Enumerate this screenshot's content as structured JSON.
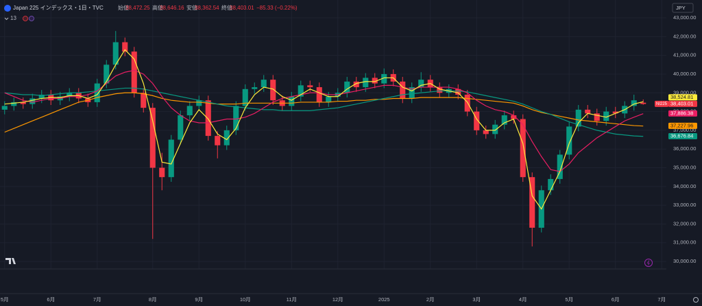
{
  "chart_data": {
    "type": "candlestick",
    "title": "Japan 225 インデックス・1日・TVC",
    "header": {
      "open_label": "始値",
      "open": "38,472.25",
      "high_label": "高値",
      "high": "38,646.16",
      "low_label": "安値",
      "low": "38,362.54",
      "close_label": "終値",
      "close": "38,403.01",
      "change": "−85.33 (−0.22%)",
      "indicators": 13
    },
    "currency": "JPY",
    "symbol": "NI225",
    "categories": [
      "5月",
      null,
      null,
      null,
      null,
      "6月",
      null,
      null,
      null,
      null,
      "7月",
      null,
      null,
      null,
      null,
      null,
      "8月",
      null,
      null,
      null,
      null,
      "9月",
      null,
      null,
      null,
      null,
      "10月",
      null,
      null,
      null,
      null,
      "11月",
      null,
      null,
      null,
      null,
      "12月",
      null,
      null,
      null,
      null,
      "2025",
      null,
      null,
      null,
      null,
      "2月",
      null,
      null,
      null,
      null,
      "3月",
      null,
      null,
      null,
      null,
      "4月",
      null,
      null,
      null,
      null,
      "5月",
      null,
      null,
      null,
      null,
      "6月",
      null,
      null,
      null,
      null,
      "7月"
    ],
    "open": [
      38100,
      38300,
      38500,
      38400,
      38700,
      38900,
      38600,
      38800,
      39000,
      38700,
      38500,
      39500,
      40500,
      41700,
      41200,
      39000,
      38200,
      35000,
      34500,
      36500,
      37800,
      38300,
      38600,
      36700,
      36200,
      37000,
      38300,
      39200,
      39300,
      39700,
      38600,
      38300,
      38800,
      39400,
      39300,
      38500,
      38800,
      39000,
      39600,
      39300,
      39800,
      39500,
      40000,
      39600,
      38700,
      39300,
      39700,
      39300,
      39000,
      39200,
      38900,
      38000,
      37000,
      36800,
      37300,
      37800,
      37600,
      34500,
      31800,
      33800,
      34400,
      35700,
      37200,
      38100,
      37900,
      37500,
      38000,
      37900,
      38300,
      38472.25,
      null,
      null
    ],
    "high": [
      38550,
      38750,
      38750,
      38950,
      39150,
      39150,
      39050,
      39250,
      39250,
      38950,
      39750,
      40750,
      42300,
      41950,
      41450,
      39250,
      38450,
      35800,
      36750,
      38050,
      38550,
      38850,
      38850,
      36950,
      37250,
      38550,
      39450,
      39550,
      39950,
      39950,
      38850,
      39050,
      39650,
      39650,
      39550,
      39050,
      39250,
      39850,
      39850,
      40050,
      40050,
      40300,
      40250,
      39850,
      39550,
      40100,
      39950,
      39550,
      39450,
      39450,
      39150,
      38250,
      37250,
      37550,
      38050,
      38050,
      37850,
      34750,
      34050,
      34650,
      35950,
      37450,
      38350,
      38350,
      38150,
      38250,
      38250,
      38550,
      38900,
      38646.16,
      null,
      null
    ],
    "low": [
      37850,
      38050,
      38150,
      38150,
      38450,
      38350,
      38350,
      38550,
      38450,
      38250,
      38250,
      39250,
      40250,
      40950,
      38750,
      37950,
      31200,
      33800,
      34250,
      36250,
      37550,
      38050,
      36450,
      35500,
      35950,
      36750,
      38050,
      38950,
      39050,
      38350,
      38050,
      38050,
      38550,
      39050,
      38250,
      38250,
      38550,
      38750,
      39050,
      39050,
      39250,
      39250,
      39350,
      38450,
      38450,
      39050,
      39050,
      38750,
      38750,
      38650,
      37750,
      36750,
      36550,
      36550,
      37050,
      37350,
      34250,
      30800,
      31550,
      33550,
      34150,
      35450,
      36950,
      37650,
      37250,
      37250,
      37650,
      37650,
      38050,
      38362.54,
      null,
      null
    ],
    "close": [
      38300,
      38500,
      38400,
      38700,
      38900,
      38600,
      38800,
      39000,
      38700,
      38500,
      39500,
      40500,
      41700,
      41200,
      39000,
      38200,
      35000,
      34500,
      36500,
      37800,
      38300,
      38600,
      36700,
      36200,
      37000,
      38300,
      39200,
      39300,
      39700,
      38600,
      38300,
      38800,
      39400,
      39300,
      38500,
      38800,
      39000,
      39600,
      39300,
      39800,
      39500,
      40000,
      39600,
      38700,
      39300,
      39700,
      39300,
      39000,
      39200,
      38900,
      38000,
      37000,
      36800,
      37300,
      37800,
      37600,
      34500,
      31800,
      33800,
      34400,
      35700,
      37200,
      38100,
      37900,
      37500,
      38000,
      37900,
      38300,
      38600,
      38403.01,
      null,
      null
    ],
    "up_color": "#089981",
    "down_color": "#f23645",
    "lines": [
      {
        "color": "#ff9800",
        "values": [
          36900,
          37100,
          37300,
          37500,
          37700,
          37900,
          38100,
          38300,
          38500,
          38600,
          38750,
          38850,
          38950,
          39000,
          39000,
          38950,
          38850,
          38700,
          38600,
          38550,
          38500,
          38500,
          38450,
          38400,
          38400,
          38400,
          38450,
          38450,
          38450,
          38450,
          38450,
          38450,
          38500,
          38500,
          38500,
          38500,
          38550,
          38550,
          38600,
          38600,
          38650,
          38650,
          38700,
          38700,
          38700,
          38750,
          38750,
          38750,
          38750,
          38750,
          38700,
          38650,
          38600,
          38550,
          38500,
          38450,
          38300,
          38100,
          37950,
          37850,
          37750,
          37650,
          37550,
          37500,
          37450,
          37400,
          37350,
          37300,
          37250,
          37227.96,
          null,
          null
        ]
      },
      {
        "color": "#089981",
        "values": [
          39000,
          38950,
          38900,
          38900,
          38850,
          38900,
          38950,
          39000,
          39000,
          39050,
          39100,
          39150,
          39200,
          39250,
          39250,
          39200,
          39100,
          39000,
          38900,
          38800,
          38700,
          38600,
          38500,
          38400,
          38300,
          38250,
          38200,
          38150,
          38100,
          38100,
          38050,
          38050,
          38050,
          38050,
          38100,
          38150,
          38200,
          38300,
          38400,
          38500,
          38600,
          38700,
          38800,
          38900,
          38950,
          39000,
          39050,
          39100,
          39100,
          39100,
          39050,
          38950,
          38850,
          38750,
          38650,
          38550,
          38400,
          38200,
          38000,
          37850,
          37650,
          37450,
          37300,
          37150,
          37000,
          36900,
          36800,
          36750,
          36700,
          36676.84,
          null,
          null
        ]
      },
      {
        "color": "#e91e63",
        "values": [
          39000,
          38800,
          38600,
          38500,
          38600,
          38700,
          38700,
          38800,
          38800,
          38900,
          39100,
          39500,
          39900,
          40100,
          40200,
          40000,
          39500,
          38800,
          38200,
          37800,
          37500,
          37400,
          37400,
          37500,
          37600,
          37600,
          37700,
          37900,
          38200,
          38500,
          38700,
          38800,
          38900,
          39000,
          39000,
          38900,
          38900,
          39000,
          39100,
          39200,
          39300,
          39400,
          39400,
          39300,
          39200,
          39300,
          39300,
          39300,
          39300,
          39200,
          39000,
          38600,
          38300,
          38100,
          38000,
          37800,
          37300,
          36400,
          35600,
          34900,
          34800,
          35200,
          35800,
          36200,
          36600,
          36900,
          37200,
          37500,
          37700,
          37886.38,
          null,
          null
        ]
      },
      {
        "color": "#ffeb3b",
        "values": [
          38400,
          38450,
          38500,
          38600,
          38700,
          38750,
          38750,
          38850,
          38850,
          38700,
          38900,
          39600,
          40500,
          41300,
          40800,
          39500,
          37500,
          35300,
          35200,
          36300,
          37400,
          38100,
          37600,
          36800,
          36500,
          37100,
          38200,
          38900,
          39300,
          39200,
          38800,
          38600,
          38900,
          39200,
          39000,
          38800,
          38800,
          39200,
          39500,
          39600,
          39600,
          39800,
          39800,
          39300,
          39100,
          39400,
          39500,
          39200,
          39100,
          39000,
          38500,
          37600,
          37000,
          37000,
          37400,
          37600,
          36300,
          33500,
          32800,
          33800,
          34800,
          36300,
          37400,
          37900,
          37800,
          37700,
          37900,
          38100,
          38400,
          38524.81,
          null,
          null
        ]
      }
    ],
    "price_labels": [
      {
        "value": 38524.81,
        "label": "38,524.81",
        "color": "#ffeb3b",
        "text_color": "#131722"
      },
      {
        "value": 38403.01,
        "label": "38,403.01",
        "color": "#f23645",
        "text_color": "#ffffff",
        "symbol": true
      },
      {
        "value": 37886.38,
        "label": "37,886.38",
        "color": "#e91e63",
        "text_color": "#ffffff"
      },
      {
        "value": 37227.96,
        "label": "37,227.96",
        "color": "#ff9800",
        "text_color": "#131722"
      },
      {
        "value": 36676.84,
        "label": "36,676.84",
        "color": "#089981",
        "text_color": "#ffffff"
      }
    ],
    "ylim": [
      29600,
      43660
    ],
    "yticks": [
      {
        "value": 30000,
        "label": "30,000.00"
      },
      {
        "value": 31000,
        "label": "31,000.00"
      },
      {
        "value": 32000,
        "label": "32,000.00"
      },
      {
        "value": 33000,
        "label": "33,000.00"
      },
      {
        "value": 34000,
        "label": "34,000.00"
      },
      {
        "value": 35000,
        "label": "35,000.00"
      },
      {
        "value": 36000,
        "label": "36,000.00"
      },
      {
        "value": 37000,
        "label": "37,000.00"
      },
      {
        "value": 38000,
        "label": "38,000.00"
      },
      {
        "value": 39000,
        "label": "39,000.00"
      },
      {
        "value": 40000,
        "label": "40,000.00"
      },
      {
        "value": 41000,
        "label": "41,000.00"
      },
      {
        "value": 42000,
        "label": "42,000.00"
      },
      {
        "value": 43000,
        "label": "43,000.00"
      }
    ],
    "grid": true
  }
}
